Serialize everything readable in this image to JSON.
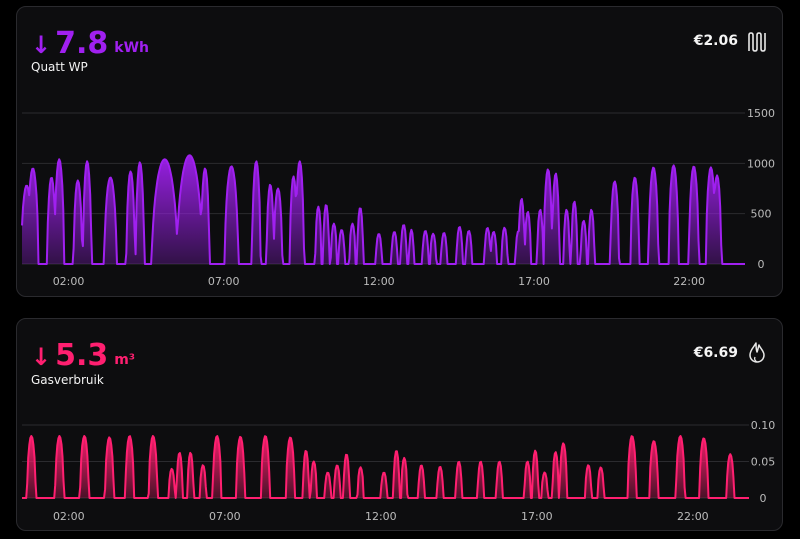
{
  "chart_data": [
    {
      "type": "area",
      "title": "Quatt WP",
      "value": "7.8",
      "unit": "kWh",
      "cost": "€2.06",
      "icon": "radiator-icon",
      "color": "#a020f0",
      "y_ticks": [
        "0",
        "500",
        "1000",
        "1500"
      ],
      "ylim": [
        0,
        1500
      ],
      "x_ticks": [
        "02:00",
        "07:00",
        "12:00",
        "17:00",
        "22:00"
      ],
      "x_tick_hours": [
        2,
        7,
        12,
        17,
        22
      ],
      "xlim": [
        0.5,
        23.8
      ],
      "grid": true,
      "bursts": [
        [
          0.65,
          780,
          0.18
        ],
        [
          0.85,
          950,
          0.18
        ],
        [
          1.45,
          860,
          0.14
        ],
        [
          1.7,
          1040,
          0.16
        ],
        [
          2.3,
          830,
          0.14
        ],
        [
          2.6,
          1020,
          0.14
        ],
        [
          3.35,
          860,
          0.2
        ],
        [
          4.0,
          920,
          0.14
        ],
        [
          4.3,
          1010,
          0.14
        ],
        [
          5.1,
          1040,
          0.42
        ],
        [
          5.9,
          1080,
          0.42
        ],
        [
          6.4,
          950,
          0.14
        ],
        [
          7.25,
          970,
          0.22
        ],
        [
          8.05,
          1020,
          0.14
        ],
        [
          8.5,
          790,
          0.12
        ],
        [
          8.75,
          750,
          0.14
        ],
        [
          9.25,
          870,
          0.12
        ],
        [
          9.45,
          1020,
          0.14
        ],
        [
          10.05,
          570,
          0.1
        ],
        [
          10.3,
          590,
          0.1
        ],
        [
          10.55,
          400,
          0.1
        ],
        [
          10.8,
          340,
          0.1
        ],
        [
          11.15,
          400,
          0.1
        ],
        [
          11.4,
          560,
          0.1
        ],
        [
          12.0,
          300,
          0.1
        ],
        [
          12.5,
          320,
          0.1
        ],
        [
          12.8,
          390,
          0.1
        ],
        [
          13.05,
          340,
          0.08
        ],
        [
          13.5,
          330,
          0.1
        ],
        [
          13.75,
          300,
          0.1
        ],
        [
          14.1,
          310,
          0.1
        ],
        [
          14.6,
          370,
          0.1
        ],
        [
          14.9,
          330,
          0.1
        ],
        [
          15.5,
          360,
          0.1
        ],
        [
          15.7,
          320,
          0.1
        ],
        [
          16.05,
          360,
          0.1
        ],
        [
          16.5,
          330,
          0.1
        ],
        [
          16.6,
          650,
          0.1
        ],
        [
          16.8,
          520,
          0.1
        ],
        [
          17.2,
          540,
          0.1
        ],
        [
          17.45,
          940,
          0.14
        ],
        [
          17.7,
          900,
          0.12
        ],
        [
          18.05,
          540,
          0.1
        ],
        [
          18.3,
          620,
          0.1
        ],
        [
          18.6,
          430,
          0.1
        ],
        [
          18.85,
          540,
          0.1
        ],
        [
          19.6,
          820,
          0.14
        ],
        [
          20.25,
          860,
          0.14
        ],
        [
          20.85,
          960,
          0.16
        ],
        [
          21.5,
          980,
          0.16
        ],
        [
          22.15,
          970,
          0.16
        ],
        [
          22.7,
          960,
          0.16
        ],
        [
          22.9,
          880,
          0.14
        ]
      ]
    },
    {
      "type": "area",
      "title": "Gasverbruik",
      "value": "5.3",
      "unit": "m³",
      "cost": "€6.69",
      "icon": "gas-flame-icon",
      "color": "#ff1f70",
      "y_ticks": [
        "0",
        "0.05",
        "0.10"
      ],
      "ylim": [
        0,
        0.1
      ],
      "x_ticks": [
        "02:00",
        "07:00",
        "12:00",
        "17:00",
        "22:00"
      ],
      "x_tick_hours": [
        2,
        7,
        12,
        17,
        22
      ],
      "xlim": [
        0.5,
        23.8
      ],
      "grid": true,
      "bursts": [
        [
          0.8,
          0.085,
          0.14
        ],
        [
          1.7,
          0.085,
          0.14
        ],
        [
          2.5,
          0.085,
          0.14
        ],
        [
          3.3,
          0.083,
          0.14
        ],
        [
          3.95,
          0.085,
          0.14
        ],
        [
          4.7,
          0.085,
          0.14
        ],
        [
          5.3,
          0.04,
          0.1
        ],
        [
          5.55,
          0.062,
          0.1
        ],
        [
          5.9,
          0.062,
          0.1
        ],
        [
          6.3,
          0.045,
          0.1
        ],
        [
          6.75,
          0.085,
          0.14
        ],
        [
          7.5,
          0.084,
          0.14
        ],
        [
          8.3,
          0.085,
          0.14
        ],
        [
          9.1,
          0.083,
          0.14
        ],
        [
          9.6,
          0.065,
          0.1
        ],
        [
          9.85,
          0.05,
          0.1
        ],
        [
          10.3,
          0.035,
          0.1
        ],
        [
          10.6,
          0.045,
          0.1
        ],
        [
          10.9,
          0.06,
          0.1
        ],
        [
          11.35,
          0.042,
          0.1
        ],
        [
          12.1,
          0.035,
          0.1
        ],
        [
          12.5,
          0.065,
          0.1
        ],
        [
          12.75,
          0.055,
          0.1
        ],
        [
          13.3,
          0.045,
          0.1
        ],
        [
          13.9,
          0.043,
          0.1
        ],
        [
          14.5,
          0.05,
          0.1
        ],
        [
          15.2,
          0.05,
          0.1
        ],
        [
          15.8,
          0.05,
          0.1
        ],
        [
          16.7,
          0.05,
          0.1
        ],
        [
          16.95,
          0.065,
          0.1
        ],
        [
          17.25,
          0.035,
          0.1
        ],
        [
          17.6,
          0.063,
          0.1
        ],
        [
          17.85,
          0.075,
          0.12
        ],
        [
          18.65,
          0.045,
          0.1
        ],
        [
          19.05,
          0.042,
          0.1
        ],
        [
          20.05,
          0.085,
          0.14
        ],
        [
          20.75,
          0.078,
          0.14
        ],
        [
          21.6,
          0.085,
          0.14
        ],
        [
          22.35,
          0.082,
          0.14
        ],
        [
          23.2,
          0.06,
          0.12
        ]
      ]
    }
  ]
}
